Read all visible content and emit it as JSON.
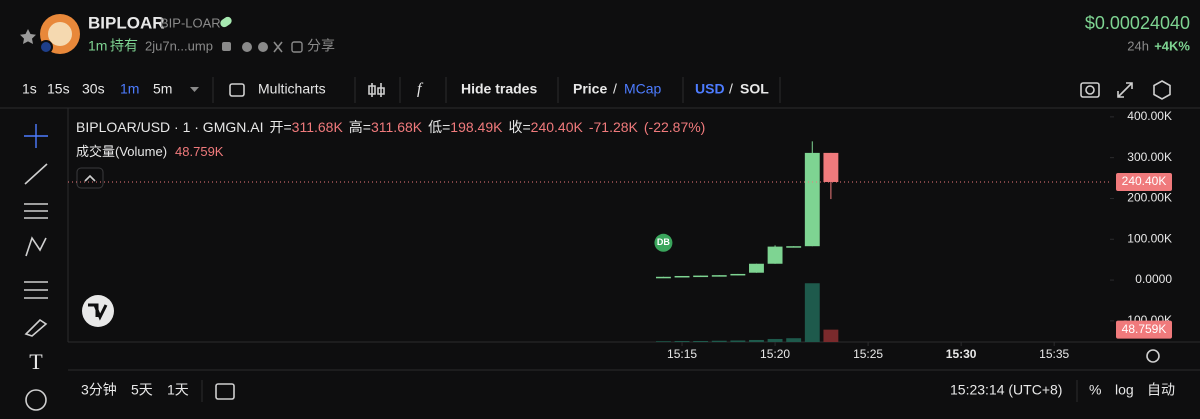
{
  "header": {
    "name": "BIPLOAR",
    "ticker": "BIP-LOAR",
    "age": "1m",
    "holding": "持有",
    "address": "2ju7n...ump",
    "share": "分享",
    "price": "$0.00024040",
    "change_period": "24h",
    "change": "+4K%"
  },
  "toolbar": {
    "intervals": [
      "1s",
      "15s",
      "30s",
      "1m",
      "5m"
    ],
    "multicharts": "Multicharts",
    "hide_trades": "Hide trades",
    "price": "Price",
    "mcap": "MCap",
    "usd": "USD",
    "sol": "SOL",
    "separator": "/"
  },
  "legend": {
    "symbol": "BIPLOAR/USD · 1 · GMGN.AI",
    "ohlc": [
      {
        "label": "开=",
        "value": "311.68K"
      },
      {
        "label": "高=",
        "value": "311.68K"
      },
      {
        "label": "低=",
        "value": "198.49K"
      },
      {
        "label": "收=",
        "value": "240.40K"
      }
    ],
    "change": "-71.28K",
    "change_pct": "(-22.87%)",
    "volume_label": "成交量(Volume)",
    "volume": "48.759K"
  },
  "chart_data": {
    "type": "candlestick",
    "x": [
      "15:14",
      "15:15",
      "15:16",
      "15:17",
      "15:18",
      "15:19",
      "15:20",
      "15:21",
      "15:22",
      "15:23"
    ],
    "open": [
      5000,
      8000,
      10000,
      11000,
      12000,
      18000,
      40000,
      82000,
      83000,
      311680
    ],
    "high": [
      8000,
      10000,
      11000,
      12000,
      15000,
      40000,
      85000,
      83000,
      340000,
      311680
    ],
    "low": [
      5000,
      8000,
      10000,
      11000,
      12000,
      18000,
      40000,
      82000,
      83000,
      198490
    ],
    "close": [
      8000,
      10000,
      11000,
      12000,
      15000,
      40000,
      82000,
      83000,
      311680,
      240400
    ],
    "volume": [
      3000,
      4000,
      4000,
      5000,
      6000,
      8000,
      12000,
      15000,
      232000,
      48759
    ],
    "up_color": "#7ed492",
    "down_color": "#f07a7c",
    "volume_up_color": "#1e5a4c",
    "volume_down_color": "#7a2a2c",
    "xlim": [
      "14:42",
      "15:38"
    ],
    "xticks": [
      "15:15",
      "15:20",
      "15:25",
      "15:30",
      "15:35"
    ],
    "ylim": [
      -151800,
      421700
    ],
    "yticks": [
      {
        "value": -100000,
        "label": "-100.00K"
      },
      {
        "value": 0,
        "label": "0.0000"
      },
      {
        "value": 100000,
        "label": "100.00K"
      },
      {
        "value": 200000,
        "label": "200.00K"
      },
      {
        "value": 300000,
        "label": "300.00K"
      },
      {
        "value": 400000,
        "label": "400.00K"
      }
    ],
    "volume_ylim": [
      0,
      924000
    ],
    "last_price_label": "240.40K",
    "last_volume_label": "48.759K",
    "marker": {
      "x": "15:14",
      "label": "DB"
    }
  },
  "footer": {
    "ranges": [
      "3分钟",
      "5天",
      "1天"
    ],
    "time": "15:23:14 (UTC+8)",
    "percent": "%",
    "log": "log",
    "auto": "自动"
  }
}
